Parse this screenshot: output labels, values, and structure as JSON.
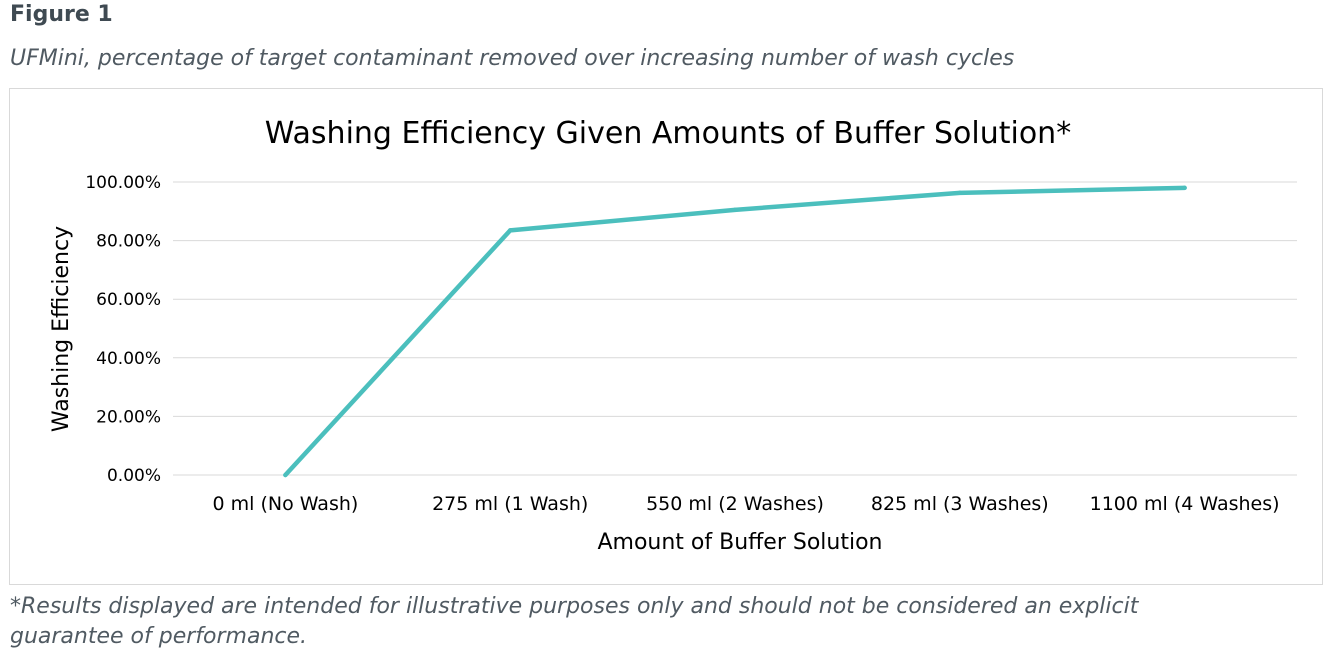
{
  "figure": {
    "label": "Figure 1",
    "caption": "UFMini, percentage of target contaminant removed over increasing number of wash cycles",
    "footnote_line1": "*Results displayed are intended for illustrative purposes only and should not be considered an explicit",
    "footnote_line2": "guarantee of performance."
  },
  "chart_data": {
    "type": "line",
    "title": "Washing Efficiency Given Amounts of Buffer Solution*",
    "xlabel": "Amount of Buffer Solution",
    "ylabel": "Washing Efficiency",
    "categories": [
      "0 ml (No Wash)",
      "275 ml (1 Wash)",
      "550 ml (2 Washes)",
      "825 ml (3 Washes)",
      "1100 ml (4 Washes)"
    ],
    "series": [
      {
        "values": [
          0.0,
          83.5,
          90.5,
          96.3,
          98.0
        ],
        "color": "#4bbfbd"
      }
    ],
    "ylim": [
      0,
      100
    ],
    "yticks": [
      0,
      20,
      40,
      60,
      80,
      100
    ],
    "ytick_labels": [
      "0.00%",
      "20.00%",
      "40.00%",
      "60.00%",
      "80.00%",
      "100.00%"
    ],
    "grid": true,
    "legend": "none"
  }
}
